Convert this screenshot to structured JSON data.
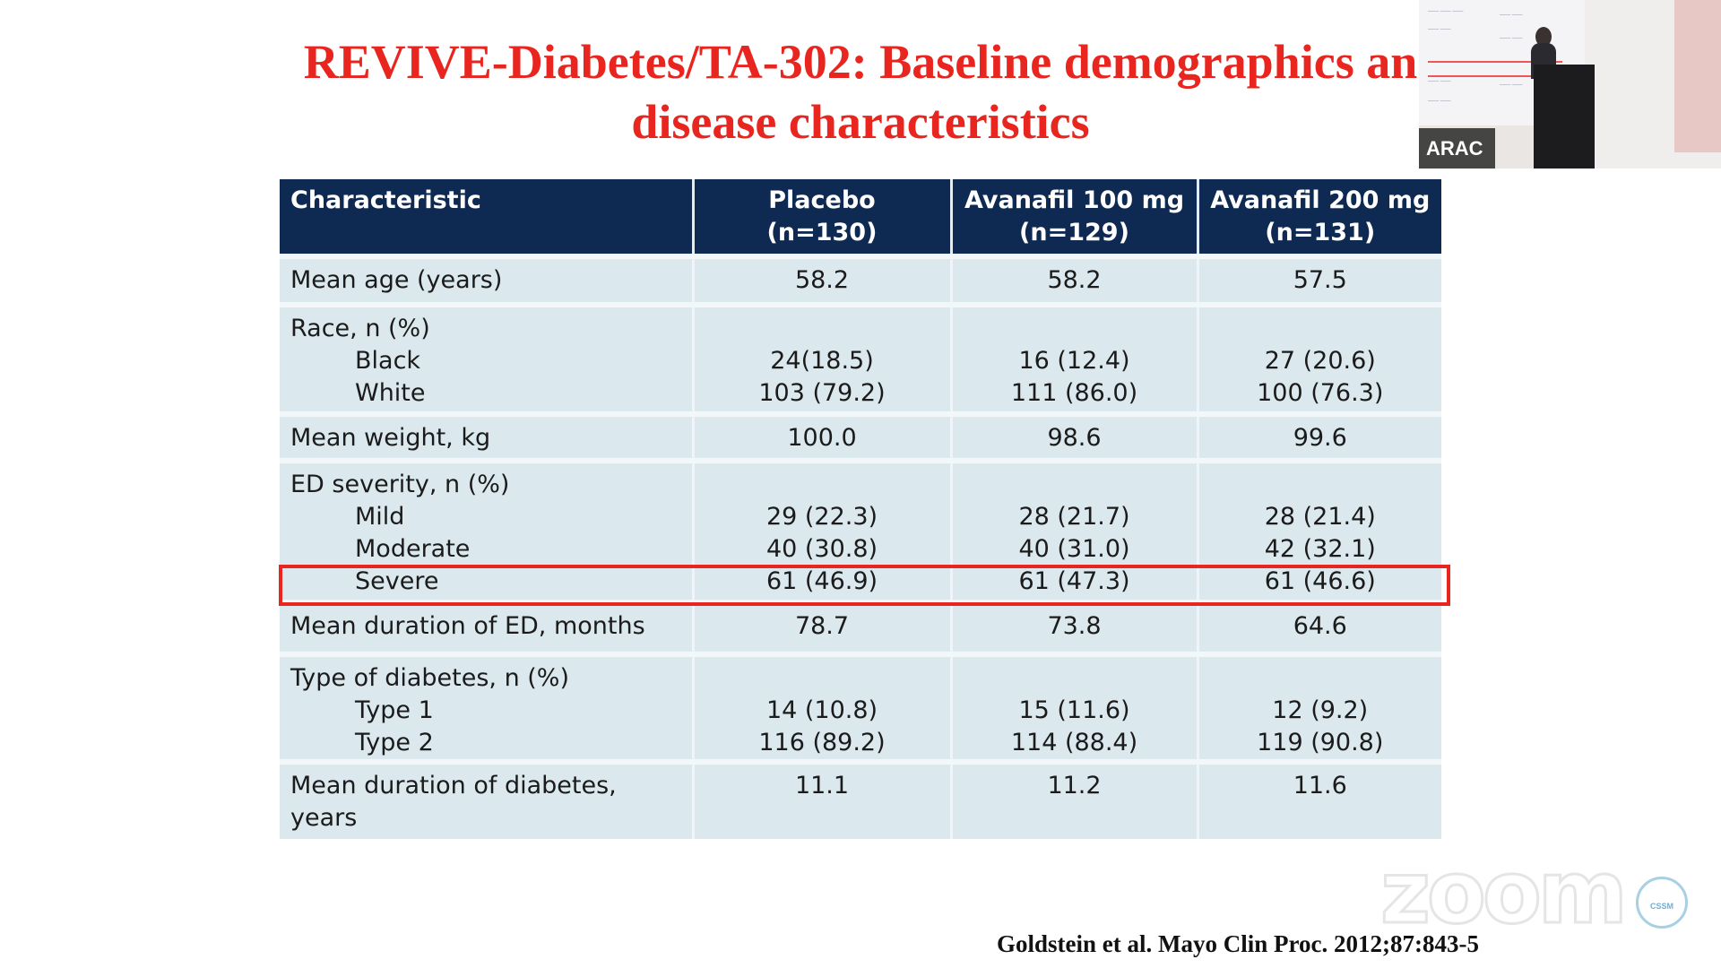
{
  "slide": {
    "title_line1": "REVIVE-Diabetes/TA-302: Baseline demographics an",
    "title_line2": "disease characteristics",
    "citation": "Goldstein et al. Mayo Clin Proc. 2012;87:843-5",
    "watermark": "zoom",
    "badge_text": "CSSM"
  },
  "webcam": {
    "name_label": "ARAC"
  },
  "table": {
    "headers": [
      {
        "line1": "Characteristic",
        "line2": ""
      },
      {
        "line1": "Placebo",
        "line2": "(n=130)"
      },
      {
        "line1": "Avanafil 100 mg",
        "line2": "(n=129)"
      },
      {
        "line1": "Avanafil 200 mg",
        "line2": "(n=131)"
      }
    ],
    "mean_age": {
      "label": "Mean age (years)",
      "values": [
        "58.2",
        "58.2",
        "57.5"
      ]
    },
    "race": {
      "label": "Race, n (%)",
      "black": {
        "label": "Black",
        "values": [
          "24(18.5)",
          "16 (12.4)",
          "27 (20.6)"
        ]
      },
      "white": {
        "label": "White",
        "values": [
          "103 (79.2)",
          "111 (86.0)",
          "100 (76.3)"
        ]
      }
    },
    "mean_weight": {
      "label": "Mean weight, kg",
      "values": [
        "100.0",
        "98.6",
        "99.6"
      ]
    },
    "ed_severity": {
      "label": "ED severity, n (%)",
      "mild": {
        "label": "Mild",
        "values": [
          "29 (22.3)",
          "28 (21.7)",
          "28 (21.4)"
        ]
      },
      "moderate": {
        "label": "Moderate",
        "values": [
          "40 (30.8)",
          "40 (31.0)",
          "42 (32.1)"
        ]
      },
      "severe": {
        "label": "Severe",
        "values": [
          "61 (46.9)",
          "61 (47.3)",
          "61 (46.6)"
        ]
      }
    },
    "ed_duration": {
      "label": "Mean duration of ED, months",
      "values": [
        "78.7",
        "73.8",
        "64.6"
      ]
    },
    "diabetes_type": {
      "label": "Type of diabetes, n (%)",
      "type1": {
        "label": "Type 1",
        "values": [
          "14 (10.8)",
          "15 (11.6)",
          "12 (9.2)"
        ]
      },
      "type2": {
        "label": "Type 2",
        "values": [
          "116 (89.2)",
          "114 (88.4)",
          "119 (90.8)"
        ]
      }
    },
    "diabetes_duration": {
      "label_line1": "Mean duration of diabetes,",
      "label_line2": "years",
      "values": [
        "11.1",
        "11.2",
        "11.6"
      ]
    }
  },
  "colors": {
    "title_red": "#e8251e",
    "header_navy": "#0f2a52",
    "cell_blue": "#dbe8ee"
  }
}
